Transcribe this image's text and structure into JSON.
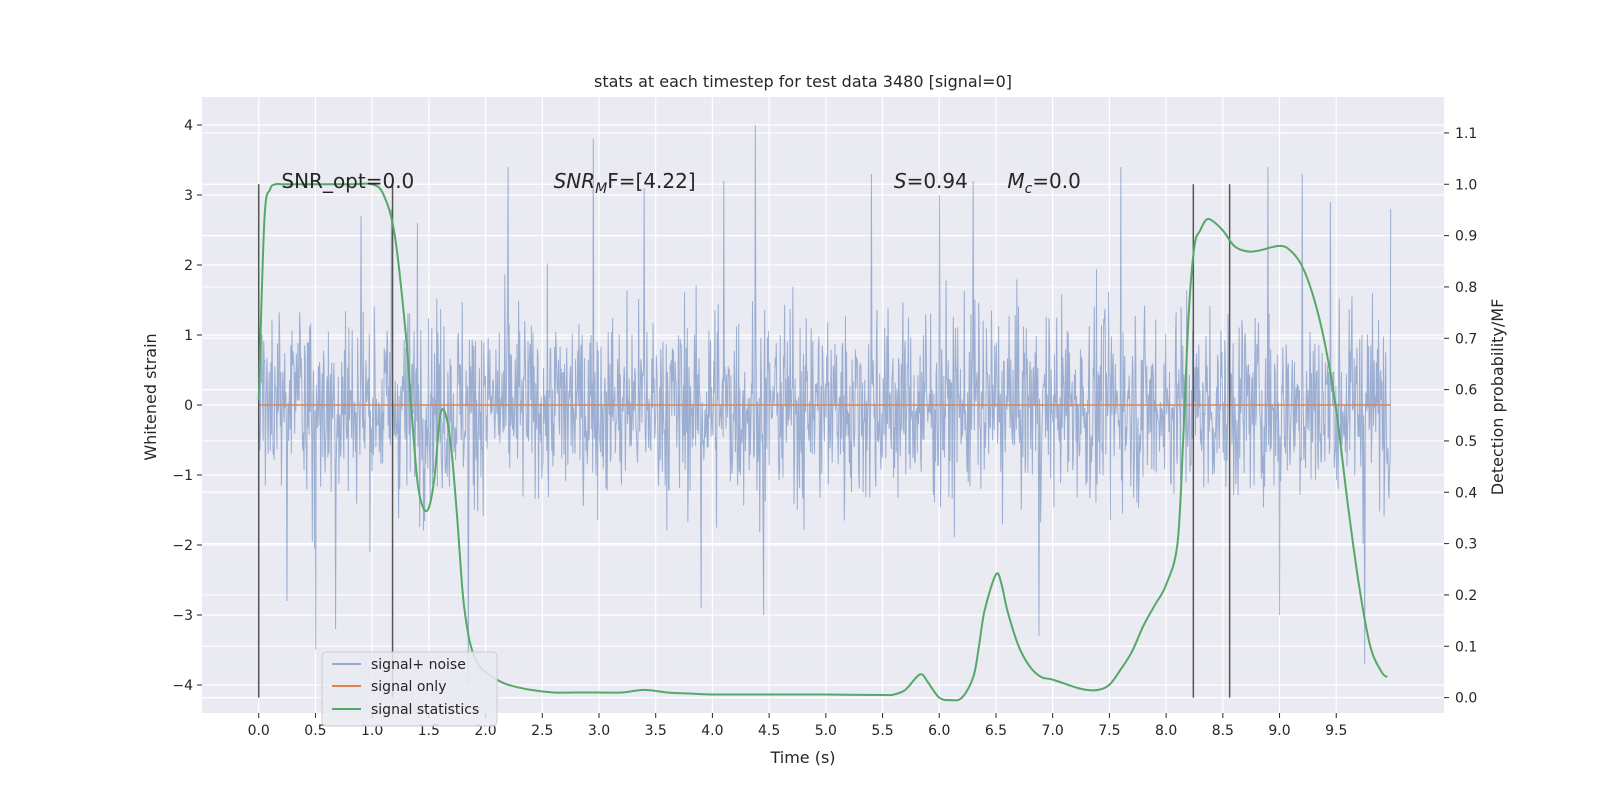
{
  "chart_data": {
    "type": "line",
    "title": "stats at each timestep for test data 3480 [signal=0]",
    "xlabel": "Time (s)",
    "ylabel": "Whitened strain",
    "y2label": "Detection probability/MF",
    "xlim": [
      -0.5,
      10.45
    ],
    "ylim": [
      -4.4,
      4.4
    ],
    "y2lim": [
      -0.03,
      1.17
    ],
    "x_ticks": [
      0.0,
      0.5,
      1.0,
      1.5,
      2.0,
      2.5,
      3.0,
      3.5,
      4.0,
      4.5,
      5.0,
      5.5,
      6.0,
      6.5,
      7.0,
      7.5,
      8.0,
      8.5,
      9.0,
      9.5
    ],
    "x_tick_labels": [
      "0.0",
      "0.5",
      "1.0",
      "1.5",
      "2.0",
      "2.5",
      "3.0",
      "3.5",
      "4.0",
      "4.5",
      "5.0",
      "5.5",
      "6.0",
      "6.5",
      "7.0",
      "7.5",
      "8.0",
      "8.5",
      "9.0",
      "9.5"
    ],
    "y_ticks": [
      4,
      3,
      2,
      1,
      0,
      -1,
      -2,
      -3,
      -4
    ],
    "y_tick_labels": [
      "4",
      "3",
      "2",
      "1",
      "0",
      "−1",
      "−2",
      "−3",
      "−4"
    ],
    "y2_ticks": [
      1.1,
      1.0,
      0.9,
      0.8,
      0.7,
      0.6,
      0.5,
      0.4,
      0.3,
      0.2,
      0.1,
      0.0
    ],
    "y2_tick_labels": [
      "1.1",
      "1.0",
      "0.9",
      "0.8",
      "0.7",
      "0.6",
      "0.5",
      "0.4",
      "0.3",
      "0.2",
      "0.1",
      "0.0"
    ],
    "grid": true,
    "legend_position": "lower-left",
    "series": [
      {
        "name": "signal+ noise",
        "color": "#4c72b0",
        "axis": "left",
        "x_range": [
          0.0,
          9.98
        ],
        "typical_envelope": [
          -1.3,
          1.3
        ],
        "peaks": [
          {
            "x": 0.0,
            "y": 2.3
          },
          {
            "x": 0.25,
            "y": -2.8
          },
          {
            "x": 0.5,
            "y": -3.5
          },
          {
            "x": 0.68,
            "y": -3.2
          },
          {
            "x": 0.9,
            "y": 2.7
          },
          {
            "x": 1.17,
            "y": 2.8
          },
          {
            "x": 1.4,
            "y": 2.6
          },
          {
            "x": 1.85,
            "y": -4.0
          },
          {
            "x": 2.2,
            "y": 3.4
          },
          {
            "x": 2.95,
            "y": 3.8
          },
          {
            "x": 3.4,
            "y": 3.1
          },
          {
            "x": 3.9,
            "y": -2.9
          },
          {
            "x": 4.1,
            "y": 3.2
          },
          {
            "x": 4.38,
            "y": 4.0
          },
          {
            "x": 4.45,
            "y": -3.0
          },
          {
            "x": 5.4,
            "y": 3.3
          },
          {
            "x": 6.0,
            "y": 3.0
          },
          {
            "x": 6.3,
            "y": 3.2
          },
          {
            "x": 6.88,
            "y": -3.3
          },
          {
            "x": 7.6,
            "y": 3.4
          },
          {
            "x": 8.9,
            "y": 3.4
          },
          {
            "x": 9.0,
            "y": -3.0
          },
          {
            "x": 9.2,
            "y": 3.3
          },
          {
            "x": 9.45,
            "y": 2.9
          },
          {
            "x": 9.75,
            "y": -3.7
          },
          {
            "x": 9.98,
            "y": 2.8
          }
        ]
      },
      {
        "name": "signal only",
        "color": "#dd8452",
        "axis": "left",
        "x": [
          0.0,
          9.98
        ],
        "y": [
          0.0,
          0.0
        ]
      },
      {
        "name": "signal statistics",
        "color": "#55a868",
        "axis": "right",
        "x": [
          0.0,
          0.05,
          0.1,
          0.15,
          0.2,
          0.3,
          0.5,
          0.7,
          0.85,
          1.0,
          1.1,
          1.2,
          1.3,
          1.35,
          1.4,
          1.45,
          1.5,
          1.55,
          1.6,
          1.65,
          1.7,
          1.75,
          1.8,
          1.85,
          1.9,
          1.95,
          2.0,
          2.1,
          2.2,
          2.4,
          2.6,
          2.8,
          3.0,
          3.2,
          3.4,
          3.6,
          3.8,
          4.0,
          4.5,
          5.0,
          5.5,
          5.6,
          5.7,
          5.8,
          5.85,
          5.9,
          6.0,
          6.1,
          6.2,
          6.3,
          6.35,
          6.4,
          6.5,
          6.55,
          6.6,
          6.7,
          6.8,
          6.9,
          7.0,
          7.2,
          7.3,
          7.4,
          7.5,
          7.6,
          7.7,
          7.8,
          7.9,
          8.0,
          8.1,
          8.15,
          8.2,
          8.25,
          8.3,
          8.35,
          8.4,
          8.5,
          8.6,
          8.7,
          8.8,
          9.0,
          9.1,
          9.2,
          9.3,
          9.4,
          9.5,
          9.6,
          9.7,
          9.8,
          9.9,
          9.95
        ],
        "y": [
          0.58,
          0.93,
          0.99,
          1.0,
          1.0,
          1.0,
          1.0,
          1.0,
          1.0,
          1.0,
          0.98,
          0.9,
          0.7,
          0.55,
          0.42,
          0.37,
          0.37,
          0.43,
          0.55,
          0.55,
          0.48,
          0.35,
          0.2,
          0.12,
          0.08,
          0.06,
          0.05,
          0.035,
          0.025,
          0.015,
          0.01,
          0.01,
          0.01,
          0.01,
          0.015,
          0.01,
          0.008,
          0.006,
          0.006,
          0.006,
          0.005,
          0.006,
          0.015,
          0.04,
          0.045,
          0.03,
          0.0,
          -0.005,
          0.0,
          0.04,
          0.1,
          0.17,
          0.24,
          0.22,
          0.17,
          0.1,
          0.06,
          0.04,
          0.035,
          0.02,
          0.015,
          0.015,
          0.025,
          0.055,
          0.09,
          0.14,
          0.18,
          0.22,
          0.3,
          0.5,
          0.75,
          0.88,
          0.91,
          0.93,
          0.93,
          0.91,
          0.88,
          0.87,
          0.87,
          0.88,
          0.87,
          0.84,
          0.78,
          0.69,
          0.56,
          0.38,
          0.22,
          0.1,
          0.05,
          0.04
        ]
      }
    ],
    "vertical_lines_x": [
      0.0,
      1.18,
      8.24,
      8.56
    ],
    "annotations": [
      {
        "x": 0.2,
        "y": 3.1,
        "text": "SNR_opt=0.0"
      },
      {
        "x": 2.6,
        "y": 3.1,
        "base": "SNR",
        "sub": "M",
        "rest": "F=[4.22]"
      },
      {
        "x": 5.6,
        "y": 3.1,
        "base": "S",
        "sub": "",
        "rest": "=0.94"
      },
      {
        "x": 6.6,
        "y": 3.1,
        "base": "M",
        "sub": "c",
        "rest": "=0.0"
      }
    ]
  }
}
